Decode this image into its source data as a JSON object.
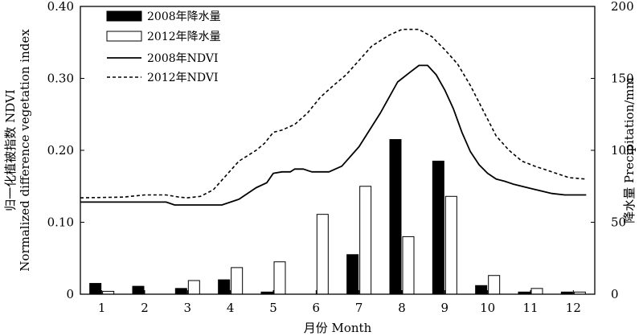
{
  "chart_data": {
    "type": "bar+line",
    "xlabel": "月份 Month",
    "ylabel_left": [
      "归一化植被指数 NDVI",
      "Normalized difference vegetation index"
    ],
    "ylabel_right": "降水量 Precipitation/mm",
    "xlim": [
      0.5,
      12.5
    ],
    "ylim_left": [
      0,
      0.4
    ],
    "ylim_right": [
      0,
      200
    ],
    "x_ticks": [
      1,
      2,
      3,
      4,
      5,
      6,
      7,
      8,
      9,
      10,
      11,
      12
    ],
    "y_left_ticks": [
      "0",
      "0.10",
      "0.20",
      "0.30",
      "0.40"
    ],
    "y_right_ticks": [
      "0",
      "50",
      "100",
      "150",
      "200"
    ],
    "grid": false,
    "legend_position": "top-left",
    "bar_series": [
      {
        "name": "2008年降水量",
        "color": "#000000",
        "fill": "solid",
        "axis": "right",
        "values": [
          7.5,
          5.5,
          4,
          10,
          1.5,
          0,
          27.5,
          107.5,
          92.5,
          6,
          1.5,
          1.5
        ]
      },
      {
        "name": "2012年降水量",
        "color": "#000000",
        "fill": "open",
        "axis": "right",
        "values": [
          2,
          0,
          9.5,
          18.5,
          22.5,
          55.5,
          75,
          40,
          68,
          13,
          4,
          1.5
        ]
      }
    ],
    "line_series": [
      {
        "name": "2008年NDVI",
        "style": "solid",
        "axis": "left",
        "x": [
          0.5,
          1.5,
          2.5,
          2.7,
          3.0,
          3.5,
          3.8,
          4.2,
          4.6,
          4.85,
          5.0,
          5.2,
          5.4,
          5.5,
          5.7,
          5.9,
          6.3,
          6.6,
          7.0,
          7.5,
          7.9,
          8.2,
          8.4,
          8.6,
          8.8,
          9.0,
          9.2,
          9.4,
          9.6,
          9.8,
          10.0,
          10.2,
          10.4,
          10.6,
          11.0,
          11.5,
          11.8,
          12.0,
          12.3
        ],
        "y": [
          0.128,
          0.128,
          0.128,
          0.124,
          0.124,
          0.124,
          0.124,
          0.132,
          0.148,
          0.155,
          0.168,
          0.17,
          0.17,
          0.174,
          0.174,
          0.17,
          0.17,
          0.178,
          0.205,
          0.252,
          0.295,
          0.309,
          0.318,
          0.318,
          0.305,
          0.284,
          0.258,
          0.225,
          0.198,
          0.18,
          0.168,
          0.16,
          0.157,
          0.153,
          0.147,
          0.14,
          0.138,
          0.138,
          0.138
        ]
      },
      {
        "name": "2012年NDVI",
        "style": "dashed",
        "axis": "left",
        "x": [
          0.5,
          1.5,
          2.0,
          2.5,
          2.8,
          3.0,
          3.3,
          3.6,
          3.9,
          4.2,
          4.6,
          4.8,
          5.0,
          5.2,
          5.5,
          5.8,
          6.1,
          6.4,
          6.7,
          7.0,
          7.3,
          7.7,
          8.0,
          8.4,
          8.7,
          9.0,
          9.3,
          9.6,
          9.9,
          10.2,
          10.5,
          10.8,
          11.1,
          11.5,
          11.9,
          12.3
        ],
        "y": [
          0.134,
          0.135,
          0.138,
          0.138,
          0.135,
          0.134,
          0.136,
          0.145,
          0.165,
          0.185,
          0.2,
          0.21,
          0.225,
          0.228,
          0.236,
          0.252,
          0.274,
          0.29,
          0.305,
          0.325,
          0.345,
          0.36,
          0.368,
          0.368,
          0.358,
          0.34,
          0.32,
          0.29,
          0.255,
          0.22,
          0.2,
          0.185,
          0.178,
          0.17,
          0.162,
          0.16
        ]
      }
    ]
  }
}
